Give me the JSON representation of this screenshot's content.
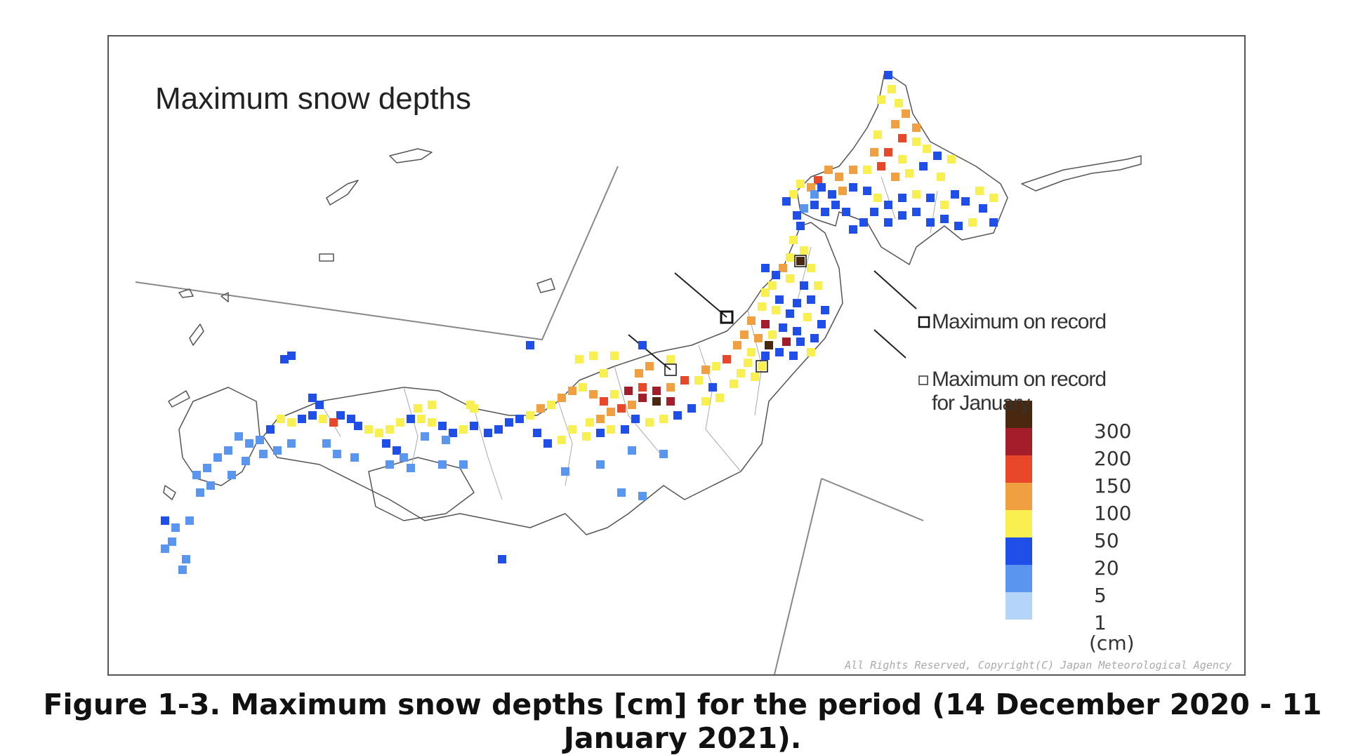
{
  "title": "Maximum snow depths",
  "caption": "Figure 1-3. Maximum snow depths [cm] for the period (14 December 2020 - 11 January 2021).",
  "copyright": "All Rights Reserved, Copyright(C) Japan Meteorological Agency",
  "record_legend": {
    "max_on_record": "Maximum on record",
    "max_on_record_january_line1": "Maximum on record",
    "max_on_record_january_line2": "for January"
  },
  "color_scale": {
    "unit": "(cm)",
    "levels": [
      {
        "label": "300",
        "color": "#4a2810"
      },
      {
        "label": "200",
        "color": "#a31d2b"
      },
      {
        "label": "150",
        "color": "#e8472a"
      },
      {
        "label": "100",
        "color": "#f0a040"
      },
      {
        "label": "50",
        "color": "#f8f050"
      },
      {
        "label": "20",
        "color": "#1f4fe8"
      },
      {
        "label": "5",
        "color": "#5a96f0"
      },
      {
        "label": "1",
        "color": "#b4d4f8"
      }
    ]
  }
}
